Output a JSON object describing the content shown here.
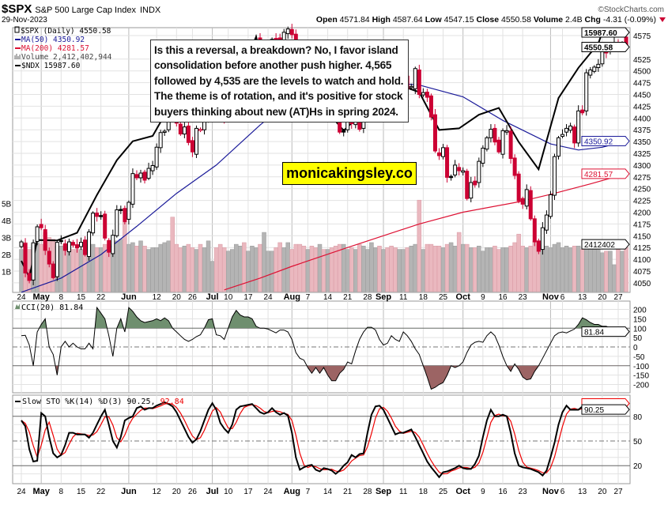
{
  "header": {
    "symbol": "$SPX",
    "name": "S&P 500 Large Cap Index",
    "exchange": "INDX",
    "date": "29-Nov-2023",
    "brand": "©StockCharts.com",
    "open_label": "Open",
    "open": "4571.84",
    "high_label": "High",
    "high": "4587.64",
    "low_label": "Low",
    "low": "4547.15",
    "close_label": "Close",
    "close": "4550.58",
    "volume_label": "Volume",
    "volume": "2.4B",
    "chg_label": "Chg",
    "chg": "-4.31 (-0.09%)",
    "chg_icon": "down-triangle-icon"
  },
  "legend": {
    "spx": "$SPX (Daily) 4550.58",
    "ma50": "MA(50) 4350.92",
    "ma200": "MA(200) 4281.57",
    "volume": "Volume 2,412,402,944",
    "ndx": "$NDX 15987.60"
  },
  "annotation": {
    "lines": [
      "Is this a reversal, a breakdown? No, I favor island",
      "consolidation before another push higher. 4,565",
      "followed by 4,535 are the levels to watch and hold.",
      "The theme is of rotation, and it's positive for stock",
      "buyers thinking about new (AT)Hs in spring 2024."
    ],
    "website": "monicakingsley.co"
  },
  "colors": {
    "up": "#000000",
    "down": "#cc0033",
    "ma50": "#1a1a99",
    "ma200": "#dd1133",
    "ndx": "#000000",
    "vol_up": "#b4b4b4",
    "vol_down": "#eab8bf",
    "cci_pos": "#6f8f6f",
    "cci_neg": "#9c6464",
    "sto_d": "#ee0000"
  },
  "chart_data": [
    {
      "type": "candlestick",
      "panel": "price",
      "ylim": [
        4050,
        4595
      ],
      "yticks": [
        4050,
        4075,
        4100,
        4125,
        4150,
        4175,
        4200,
        4225,
        4250,
        4275,
        4300,
        4325,
        4350,
        4375,
        4400,
        4425,
        4450,
        4475,
        4500,
        4525,
        4575
      ],
      "grid": true,
      "dates": [
        "04-24",
        "04-25",
        "04-26",
        "04-27",
        "04-28",
        "05-01",
        "05-02",
        "05-03",
        "05-04",
        "05-05",
        "05-08",
        "05-09",
        "05-10",
        "05-11",
        "05-12",
        "05-15",
        "05-16",
        "05-17",
        "05-18",
        "05-19",
        "05-22",
        "05-23",
        "05-24",
        "05-25",
        "05-26",
        "05-30",
        "05-31",
        "06-01",
        "06-02",
        "06-05",
        "06-06",
        "06-07",
        "06-08",
        "06-09",
        "06-12",
        "06-13",
        "06-14",
        "06-15",
        "06-16",
        "06-20",
        "06-21",
        "06-22",
        "06-23",
        "06-26",
        "06-27",
        "06-28",
        "06-29",
        "06-30",
        "07-03",
        "07-05",
        "07-06",
        "07-07",
        "07-10",
        "07-11",
        "07-12",
        "07-13",
        "07-14",
        "07-17",
        "07-18",
        "07-19",
        "07-20",
        "07-21",
        "07-24",
        "07-25",
        "07-26",
        "07-27",
        "07-28",
        "07-31",
        "08-01",
        "08-02",
        "08-03",
        "08-04",
        "08-07",
        "08-08",
        "08-09",
        "08-10",
        "08-11",
        "08-14",
        "08-15",
        "08-16",
        "08-17",
        "08-18",
        "08-21",
        "08-22",
        "08-23",
        "08-24",
        "08-25",
        "08-28",
        "08-29",
        "08-30",
        "08-31",
        "09-01",
        "09-05",
        "09-06",
        "09-07",
        "09-08",
        "09-11",
        "09-12",
        "09-13",
        "09-14",
        "09-15",
        "09-18",
        "09-19",
        "09-20",
        "09-21",
        "09-22",
        "09-25",
        "09-26",
        "09-27",
        "09-28",
        "09-29",
        "10-02",
        "10-03",
        "10-04",
        "10-05",
        "10-06",
        "10-09",
        "10-10",
        "10-11",
        "10-12",
        "10-13",
        "10-16",
        "10-17",
        "10-18",
        "10-19",
        "10-20",
        "10-23",
        "10-24",
        "10-25",
        "10-26",
        "10-27",
        "10-30",
        "10-31",
        "11-01",
        "11-02",
        "11-03",
        "11-06",
        "11-07",
        "11-08",
        "11-09",
        "11-10",
        "11-13",
        "11-14",
        "11-15",
        "11-16",
        "11-17",
        "11-20",
        "11-21",
        "11-22",
        "11-24",
        "11-27",
        "11-28",
        "11-29"
      ],
      "close": [
        4137,
        4071,
        4055,
        4135,
        4169,
        4167,
        4119,
        4090,
        4061,
        4136,
        4138,
        4119,
        4137,
        4130,
        4124,
        4136,
        4110,
        4158,
        4198,
        4191,
        4192,
        4145,
        4115,
        4151,
        4205,
        4205,
        4180,
        4221,
        4282,
        4273,
        4283,
        4268,
        4293,
        4299,
        4338,
        4369,
        4372,
        4426,
        4410,
        4389,
        4366,
        4381,
        4348,
        4328,
        4378,
        4376,
        4396,
        4450,
        4455,
        4446,
        4412,
        4399,
        4409,
        4439,
        4472,
        4510,
        4505,
        4522,
        4555,
        4565,
        4535,
        4536,
        4554,
        4567,
        4566,
        4537,
        4582,
        4589,
        4577,
        4513,
        4502,
        4478,
        4518,
        4499,
        4467,
        4468,
        4464,
        4490,
        4437,
        4404,
        4370,
        4370,
        4400,
        4388,
        4436,
        4376,
        4406,
        4433,
        4497,
        4515,
        4508,
        4516,
        4497,
        4465,
        4451,
        4457,
        4487,
        4462,
        4467,
        4505,
        4450,
        4454,
        4444,
        4402,
        4330,
        4320,
        4337,
        4274,
        4275,
        4300,
        4288,
        4288,
        4229,
        4263,
        4258,
        4308,
        4336,
        4358,
        4376,
        4349,
        4328,
        4373,
        4373,
        4314,
        4278,
        4224,
        4217,
        4248,
        4186,
        4137,
        4117,
        4167,
        4194,
        4237,
        4318,
        4358,
        4365,
        4378,
        4383,
        4347,
        4415,
        4411,
        4496,
        4502,
        4508,
        4514,
        4547,
        4538,
        4556,
        4559,
        4550,
        4555,
        4550.58
      ],
      "last_bar": {
        "open": 4571.84,
        "high": 4587.64,
        "low": 4547.15,
        "close": 4550.58
      },
      "last_label": "4550.58",
      "ma50": {
        "label": "4350.92",
        "points": [
          [
            "04-24",
            4030
          ],
          [
            "05-08",
            4060
          ],
          [
            "05-22",
            4110
          ],
          [
            "06-05",
            4170
          ],
          [
            "06-20",
            4240
          ],
          [
            "07-05",
            4300
          ],
          [
            "07-20",
            4385
          ],
          [
            "08-01",
            4440
          ],
          [
            "08-15",
            4472
          ],
          [
            "09-01",
            4476
          ],
          [
            "09-15",
            4470
          ],
          [
            "10-02",
            4445
          ],
          [
            "10-16",
            4395
          ],
          [
            "11-01",
            4345
          ],
          [
            "11-10",
            4332
          ],
          [
            "11-20",
            4338
          ],
          [
            "11-29",
            4350.92
          ]
        ]
      },
      "ma200": {
        "label": "4281.57",
        "points": [
          [
            "07-07",
            4035
          ],
          [
            "07-20",
            4060
          ],
          [
            "08-01",
            4085
          ],
          [
            "08-21",
            4125
          ],
          [
            "09-15",
            4175
          ],
          [
            "10-02",
            4200
          ],
          [
            "10-20",
            4222
          ],
          [
            "11-01",
            4238
          ],
          [
            "11-15",
            4260
          ],
          [
            "11-29",
            4281.57
          ]
        ]
      },
      "ndx": {
        "label": "15987.60",
        "points": [
          [
            "04-24",
            12970
          ],
          [
            "04-26",
            12750
          ],
          [
            "04-28",
            13245
          ],
          [
            "05-05",
            13240
          ],
          [
            "05-12",
            13340
          ],
          [
            "05-19",
            13840
          ],
          [
            "05-26",
            14300
          ],
          [
            "06-02",
            14550
          ],
          [
            "06-09",
            14620
          ],
          [
            "06-16",
            15080
          ],
          [
            "06-23",
            14890
          ],
          [
            "06-30",
            15180
          ],
          [
            "07-07",
            15040
          ],
          [
            "07-14",
            15560
          ],
          [
            "07-19",
            15930
          ],
          [
            "07-21",
            15460
          ],
          [
            "07-28",
            15750
          ],
          [
            "08-04",
            15270
          ],
          [
            "08-11",
            15000
          ],
          [
            "08-18",
            14690
          ],
          [
            "08-25",
            14940
          ],
          [
            "09-01",
            15470
          ],
          [
            "09-08",
            15290
          ],
          [
            "09-15",
            15200
          ],
          [
            "09-22",
            14700
          ],
          [
            "09-29",
            14720
          ],
          [
            "10-06",
            14900
          ],
          [
            "10-13",
            14990
          ],
          [
            "10-20",
            14540
          ],
          [
            "10-27",
            14180
          ],
          [
            "11-03",
            15120
          ],
          [
            "11-10",
            15520
          ],
          [
            "11-17",
            15840
          ],
          [
            "11-20",
            15990
          ],
          [
            "11-24",
            15980
          ],
          [
            "11-29",
            15987.6
          ]
        ]
      },
      "volume": {
        "unit": "B",
        "label": "2412402",
        "ticks": [
          "1B",
          "2B",
          "3B",
          "4B",
          "5B"
        ],
        "values": [
          2.3,
          2.7,
          2.3,
          2.6,
          2.7,
          2.6,
          3.3,
          3.0,
          2.9,
          2.5,
          2.5,
          2.6,
          2.6,
          2.3,
          2.3,
          2.3,
          2.5,
          2.6,
          2.6,
          2.4,
          2.4,
          2.6,
          2.3,
          2.6,
          2.8,
          2.9,
          3.9,
          2.6,
          2.7,
          2.5,
          2.8,
          2.5,
          2.3,
          2.4,
          2.4,
          2.6,
          2.7,
          2.8,
          4.2,
          2.6,
          2.4,
          2.5,
          2.6,
          2.4,
          2.3,
          2.6,
          2.4,
          2.8,
          1.6,
          2.4,
          2.6,
          2.4,
          2.2,
          2.3,
          2.6,
          2.5,
          2.7,
          2.2,
          2.5,
          2.4,
          2.6,
          3.3,
          2.2,
          2.2,
          2.4,
          2.7,
          2.4,
          2.7,
          2.3,
          2.6,
          2.6,
          2.5,
          2.3,
          2.5,
          2.4,
          2.6,
          2.3,
          2.3,
          2.4,
          2.5,
          2.6,
          2.6,
          2.3,
          2.4,
          2.3,
          2.6,
          2.5,
          2.3,
          2.7,
          2.4,
          2.5,
          2.3,
          2.4,
          2.5,
          2.4,
          2.3,
          2.3,
          2.4,
          2.5,
          2.6,
          5.2,
          2.3,
          2.6,
          2.6,
          2.5,
          2.5,
          2.4,
          2.6,
          2.7,
          2.5,
          3.3,
          2.6,
          2.6,
          2.4,
          2.4,
          2.5,
          2.2,
          2.4,
          2.4,
          2.5,
          2.3,
          2.4,
          2.4,
          2.5,
          2.7,
          3.2,
          2.5,
          2.4,
          2.5,
          2.8,
          2.6,
          2.3,
          2.5,
          2.4,
          2.6,
          2.7,
          2.4,
          2.5,
          2.4,
          2.5,
          2.5,
          2.3,
          2.6,
          2.5,
          2.3,
          2.4,
          2.1,
          2.2,
          2.2,
          1.4,
          2.3,
          2.2,
          2.41
        ]
      }
    },
    {
      "type": "line",
      "panel": "cci",
      "title": "CCI(20) 81.84",
      "ylim": [
        -230,
        240
      ],
      "yticks": [
        200,
        150,
        100,
        50,
        0,
        -50,
        -100,
        -150,
        -200
      ],
      "last_label": "81.84",
      "values": [
        60,
        62,
        10,
        -100,
        80,
        120,
        150,
        0,
        -40,
        -150,
        0,
        30,
        0,
        20,
        0,
        -10,
        -10,
        20,
        -10,
        210,
        180,
        150,
        60,
        -50,
        100,
        150,
        80,
        210,
        190,
        160,
        140,
        130,
        135,
        140,
        150,
        140,
        155,
        140,
        100,
        80,
        60,
        40,
        30,
        40,
        55,
        65,
        100,
        145,
        150,
        65,
        60,
        40,
        100,
        160,
        195,
        170,
        160,
        160,
        150,
        110,
        100,
        100,
        95,
        85,
        75,
        90,
        90,
        80,
        40,
        -30,
        -60,
        -70,
        -110,
        -140,
        -110,
        -140,
        -110,
        -150,
        -180,
        -180,
        -140,
        -120,
        -80,
        -90,
        -20,
        40,
        80,
        105,
        105,
        90,
        40,
        10,
        20,
        60,
        40,
        30,
        80,
        60,
        30,
        -10,
        -40,
        -100,
        -160,
        -225,
        -215,
        -200,
        -190,
        -150,
        -100,
        -110,
        -100,
        -80,
        -30,
        10,
        25,
        30,
        25,
        60,
        80,
        60,
        10,
        -50,
        -100,
        -130,
        -90,
        -120,
        -160,
        -175,
        -170,
        -130,
        -100,
        -60,
        -20,
        20,
        60,
        75,
        80,
        75,
        85,
        95,
        120,
        155,
        145,
        130,
        120,
        120,
        110,
        110,
        100,
        95,
        85,
        82,
        81.84
      ]
    },
    {
      "type": "line",
      "panel": "stochastic",
      "title": "Slow STO %K(14) %D(3) 90.25,",
      "title_d": "92.84",
      "ylim": [
        -5,
        110
      ],
      "yticks": [
        80,
        50,
        20
      ],
      "last_label": "90.25",
      "k_values": [
        75,
        68,
        40,
        25,
        26,
        84,
        80,
        55,
        35,
        30,
        33,
        45,
        60,
        60,
        58,
        58,
        58,
        54,
        60,
        70,
        80,
        88,
        70,
        50,
        42,
        55,
        75,
        78,
        80,
        90,
        92,
        88,
        90,
        90,
        93,
        95,
        97,
        95,
        92,
        85,
        75,
        65,
        55,
        48,
        52,
        62,
        75,
        88,
        96,
        88,
        72,
        65,
        60,
        70,
        88,
        92,
        93,
        94,
        95,
        90,
        85,
        83,
        85,
        90,
        85,
        82,
        84,
        81,
        60,
        30,
        15,
        18,
        20,
        21,
        15,
        13,
        17,
        16,
        14,
        10,
        14,
        20,
        24,
        33,
        30,
        34,
        35,
        60,
        82,
        92,
        93,
        88,
        78,
        68,
        58,
        60,
        60,
        62,
        64,
        55,
        45,
        35,
        25,
        18,
        12,
        6,
        12,
        13,
        15,
        17,
        20,
        17,
        16,
        16,
        22,
        32,
        55,
        75,
        88,
        80,
        80,
        82,
        80,
        60,
        35,
        20,
        18,
        17,
        16,
        14,
        12,
        8,
        14,
        30,
        48,
        70,
        85,
        93,
        88,
        88,
        88,
        92,
        93,
        92,
        93,
        93,
        94,
        93,
        92,
        92,
        91,
        91,
        90.25
      ]
    }
  ],
  "xaxis": {
    "ticks": [
      [
        "24",
        "04-24",
        false
      ],
      [
        "May",
        "05-01",
        true
      ],
      [
        "8",
        "05-08",
        false
      ],
      [
        "15",
        "05-15",
        false
      ],
      [
        "22",
        "05-22",
        false
      ],
      [
        "Jun",
        "06-01",
        true
      ],
      [
        "12",
        "06-12",
        false
      ],
      [
        "20",
        "06-20",
        false
      ],
      [
        "26",
        "06-26",
        false
      ],
      [
        "Jul",
        "07-03",
        true
      ],
      [
        "10",
        "07-10",
        false
      ],
      [
        "17",
        "07-17",
        false
      ],
      [
        "24",
        "07-24",
        false
      ],
      [
        "Aug",
        "08-01",
        true
      ],
      [
        "7",
        "08-07",
        false
      ],
      [
        "14",
        "08-14",
        false
      ],
      [
        "21",
        "08-21",
        false
      ],
      [
        "28",
        "08-28",
        false
      ],
      [
        "Sep",
        "09-01",
        true
      ],
      [
        "11",
        "09-11",
        false
      ],
      [
        "18",
        "09-18",
        false
      ],
      [
        "25",
        "09-25",
        false
      ],
      [
        "Oct",
        "10-02",
        true
      ],
      [
        "9",
        "10-09",
        false
      ],
      [
        "16",
        "10-16",
        false
      ],
      [
        "23",
        "10-23",
        false
      ],
      [
        "Nov",
        "11-01",
        true
      ],
      [
        "6",
        "11-06",
        false
      ],
      [
        "13",
        "11-13",
        false
      ],
      [
        "20",
        "11-20",
        false
      ],
      [
        "27",
        "11-27",
        false
      ]
    ]
  }
}
